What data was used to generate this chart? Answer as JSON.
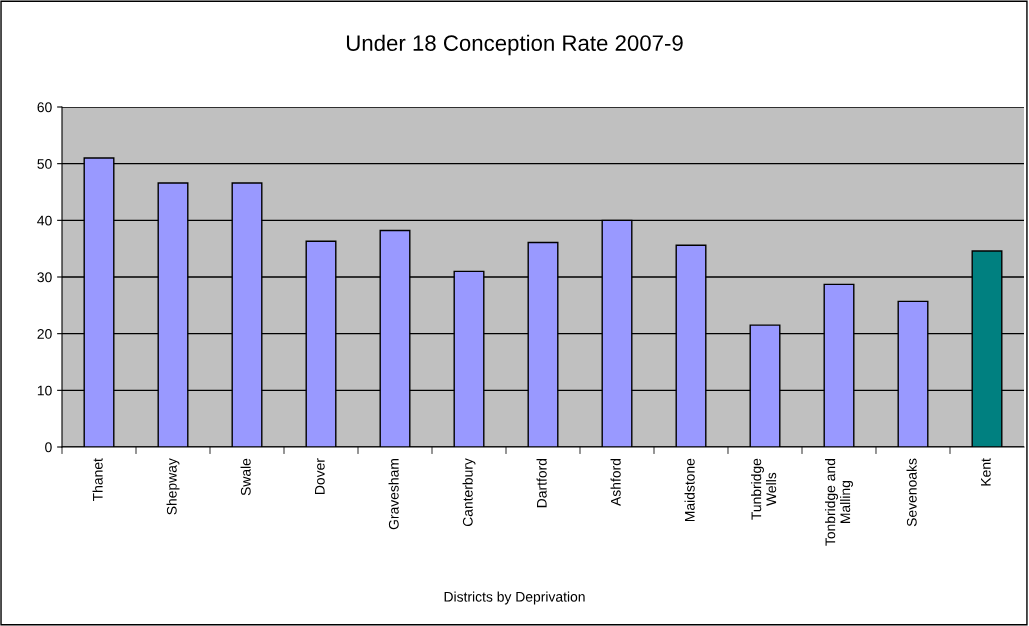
{
  "chart_data": {
    "type": "bar",
    "title": "Under 18 Conception Rate 2007-9",
    "xlabel": "Districts by Deprivation",
    "categories": [
      "Thanet",
      "Shepway",
      "Swale",
      "Dover",
      "Gravesham",
      "Canterbury",
      "Dartford",
      "Ashford",
      "Maidstone",
      "Tunbridge\nWells",
      "Tonbridge and\nMalling",
      "Sevenoaks",
      "Kent"
    ],
    "values": [
      51.0,
      46.6,
      46.6,
      36.3,
      38.2,
      31.0,
      36.1,
      40.0,
      35.6,
      21.5,
      28.7,
      25.7,
      34.6
    ],
    "colors": [
      "#9999ff",
      "#9999ff",
      "#9999ff",
      "#9999ff",
      "#9999ff",
      "#9999ff",
      "#9999ff",
      "#9999ff",
      "#9999ff",
      "#9999ff",
      "#9999ff",
      "#9999ff",
      "#008080"
    ],
    "ylim": [
      0,
      60
    ],
    "yticks": [
      0,
      10,
      20,
      30,
      40,
      50,
      60
    ],
    "grid": "y",
    "legend": false
  }
}
